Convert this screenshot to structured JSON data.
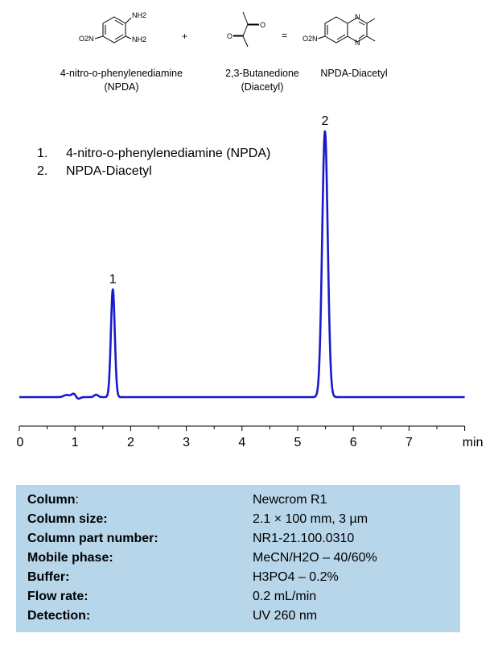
{
  "reaction": {
    "reactant1": {
      "name": "4-nitro-o-phenylenediamine",
      "abbr": "(NPDA)",
      "labels": {
        "nh2a": "NH2",
        "nh2b": "NH2",
        "no2": "O2N"
      }
    },
    "operator1": "+",
    "reactant2": {
      "name": "2,3-Butanedione",
      "abbr": "(Diacetyl)",
      "labels": {
        "o1": "O",
        "o2": "O"
      }
    },
    "operator2": "=",
    "product": {
      "name": "NPDA-Diacetyl",
      "labels": {
        "n1": "N",
        "n2": "N",
        "no2": "O2N"
      }
    }
  },
  "legend": [
    {
      "num": "1.",
      "label": "4-nitro-o-phenylenediamine (NPDA)"
    },
    {
      "num": "2.",
      "label": "NPDA-Diacetyl"
    }
  ],
  "chart_data": {
    "type": "line",
    "title": "",
    "xlabel": "min",
    "ylabel": "",
    "xlim": [
      0,
      8
    ],
    "x_ticks": [
      "0",
      "1",
      "2",
      "3",
      "4",
      "5",
      "6",
      "7"
    ],
    "ylim": [
      0,
      100
    ],
    "grid": false,
    "baseline": 0,
    "minor_features": [
      {
        "x": 0.85,
        "height": 0.8,
        "width": 0.05
      },
      {
        "x": 0.98,
        "height": 1.4,
        "width": 0.04
      },
      {
        "x": 1.05,
        "height": -0.8,
        "width": 0.04
      },
      {
        "x": 1.38,
        "height": 0.9,
        "width": 0.035
      }
    ],
    "peaks": [
      {
        "label": "1",
        "retention_time": 1.68,
        "height": 40.5,
        "width": 0.035
      },
      {
        "label": "2",
        "retention_time": 5.49,
        "height": 100,
        "width": 0.05
      }
    ],
    "series_color": "#1a1acc"
  },
  "conditions": [
    {
      "key": "Column",
      "suffix": ":",
      "value": "Newcrom  R1"
    },
    {
      "key": "Column size:",
      "suffix": "",
      "value": "2.1 × 100 mm, 3 µm"
    },
    {
      "key": "Column part number:",
      "suffix": "",
      "value": "NR1-21.100.0310"
    },
    {
      "key": "Mobile phase:",
      "suffix": "",
      "value": "MeCN/H2O – 40/60%"
    },
    {
      "key": "Buffer:",
      "suffix": "",
      "value": "H3PO4 – 0.2%"
    },
    {
      "key": "Flow rate:",
      "suffix": "",
      "value": "0.2 mL/min"
    },
    {
      "key": "Detection:",
      "suffix": "",
      "value": "UV 260 nm"
    }
  ]
}
